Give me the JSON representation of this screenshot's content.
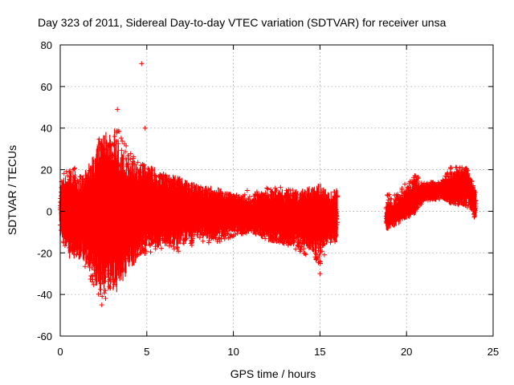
{
  "chart_data": {
    "type": "scatter",
    "title": "Day 323 of 2011, Sidereal Day-to-day VTEC variation (SDTVAR) for receiver unsa",
    "xlabel": "GPS time / hours",
    "ylabel": "SDTVAR / TECUs",
    "xlim": [
      0,
      25
    ],
    "ylim": [
      -60,
      80
    ],
    "xticks": [
      0,
      5,
      10,
      15,
      20,
      25
    ],
    "yticks": [
      -60,
      -40,
      -20,
      0,
      20,
      40,
      60,
      80
    ],
    "grid": true,
    "marker": "+",
    "color": "#ff0000",
    "series": [
      {
        "name": "SDTVAR",
        "envelope": [
          {
            "x": 0.0,
            "low": -13,
            "high": 14,
            "mid": 0
          },
          {
            "x": 0.5,
            "low": -20,
            "high": 24,
            "mid": -1
          },
          {
            "x": 1.0,
            "low": -22,
            "high": 20,
            "mid": -2
          },
          {
            "x": 1.5,
            "low": -28,
            "high": 18,
            "mid": -3
          },
          {
            "x": 2.0,
            "low": -38,
            "high": 28,
            "mid": -2
          },
          {
            "x": 2.4,
            "low": -45,
            "high": 40,
            "mid": 0
          },
          {
            "x": 2.8,
            "low": -40,
            "high": 35,
            "mid": -1
          },
          {
            "x": 3.1,
            "low": -38,
            "high": 46,
            "mid": 0
          },
          {
            "x": 3.5,
            "low": -30,
            "high": 36,
            "mid": -2
          },
          {
            "x": 4.0,
            "low": -25,
            "high": 32,
            "mid": -1
          },
          {
            "x": 4.5,
            "low": -22,
            "high": 25,
            "mid": 0
          },
          {
            "x": 5.0,
            "low": -20,
            "high": 22,
            "mid": 2
          },
          {
            "x": 6.0,
            "low": -18,
            "high": 18,
            "mid": 1
          },
          {
            "x": 7.0,
            "low": -20,
            "high": 14,
            "mid": 0
          },
          {
            "x": 8.0,
            "low": -14,
            "high": 12,
            "mid": 0
          },
          {
            "x": 9.0,
            "low": -16,
            "high": 10,
            "mid": -1
          },
          {
            "x": 10.0,
            "low": -12,
            "high": 8,
            "mid": -1
          },
          {
            "x": 11.0,
            "low": -10,
            "high": 8,
            "mid": -2
          },
          {
            "x": 12.0,
            "low": -14,
            "high": 12,
            "mid": -2
          },
          {
            "x": 13.0,
            "low": -16,
            "high": 12,
            "mid": -3
          },
          {
            "x": 14.0,
            "low": -20,
            "high": 8,
            "mid": -3
          },
          {
            "x": 15.0,
            "low": -26,
            "high": 10,
            "mid": -4
          },
          {
            "x": 15.5,
            "low": -18,
            "high": 6,
            "mid": -3
          },
          {
            "x": 16.0,
            "low": -15,
            "high": 12,
            "mid": -2
          },
          {
            "x": 18.8,
            "low": -7,
            "high": 8,
            "mid": -3
          },
          {
            "x": 19.5,
            "low": -4,
            "high": 10,
            "mid": 0
          },
          {
            "x": 20.5,
            "low": 0,
            "high": 18,
            "mid": 7
          },
          {
            "x": 21.0,
            "low": 5,
            "high": 14,
            "mid": 9
          },
          {
            "x": 22.0,
            "low": 6,
            "high": 14,
            "mid": 10
          },
          {
            "x": 22.6,
            "low": 4,
            "high": 22,
            "mid": 11
          },
          {
            "x": 23.5,
            "low": 2,
            "high": 21,
            "mid": 12
          },
          {
            "x": 24.0,
            "low": -4,
            "high": 10,
            "mid": 4
          }
        ],
        "gaps": [
          [
            16.0,
            18.8
          ]
        ],
        "outliers": [
          {
            "x": 4.7,
            "y": 71
          },
          {
            "x": 3.3,
            "y": 49
          },
          {
            "x": 4.9,
            "y": 40
          },
          {
            "x": 2.4,
            "y": -45
          },
          {
            "x": 15.0,
            "y": -30
          },
          {
            "x": 10.8,
            "y": 10
          }
        ]
      }
    ]
  }
}
